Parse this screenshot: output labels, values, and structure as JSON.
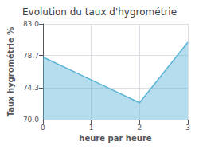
{
  "chart_data": {
    "type": "area",
    "title": "Evolution du taux d'hygrométrie",
    "xlabel": "heure par heure",
    "ylabel": "Taux hygrométrie %",
    "x": [
      0,
      1,
      2,
      3
    ],
    "values": [
      78.5,
      75.4,
      72.3,
      80.5
    ],
    "color": "#5ab4d6",
    "xlim": [
      0,
      3
    ],
    "xticks": [
      0,
      1,
      2,
      3
    ],
    "ylim": [
      70.0,
      83.0
    ],
    "yticks": [
      {
        "value": 70.0,
        "label": "70.0"
      },
      74.3,
      78.7,
      {
        "value": 83.0,
        "label": "83.0"
      }
    ],
    "grid": true
  }
}
